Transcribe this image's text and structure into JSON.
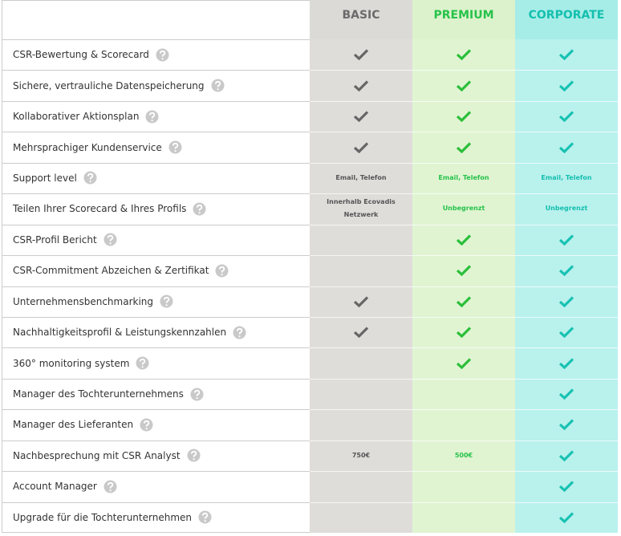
{
  "header": {
    "plans": [
      "BASIC",
      "PREMIUM",
      "CORPORATE"
    ]
  },
  "rows": [
    {
      "feature": "CSR-Bewertung & Scorecard",
      "basic": true,
      "premium": true,
      "corporate": true
    },
    {
      "feature": "Sichere, vertrauliche Datenspeicherung",
      "basic": true,
      "premium": true,
      "corporate": true
    },
    {
      "feature": "Kollaborativer Aktionsplan",
      "basic": true,
      "premium": true,
      "corporate": true
    },
    {
      "feature": "Mehrsprachiger Kundenservice",
      "basic": true,
      "premium": true,
      "corporate": true
    },
    {
      "feature": "Support level",
      "basic": "Email, Telefon",
      "premium": "Email, Telefon",
      "corporate": "Email, Telefon"
    },
    {
      "feature": "Teilen Ihrer Scorecard & Ihres Profils",
      "basic": "Innerhalb Ecovadis Netzwerk",
      "premium": "Unbegrenzt",
      "corporate": "Unbegrenzt"
    },
    {
      "feature": "CSR-Profil Bericht",
      "basic": false,
      "premium": true,
      "corporate": true
    },
    {
      "feature": "CSR-Commitment Abzeichen & Zertifikat",
      "basic": false,
      "premium": true,
      "corporate": true
    },
    {
      "feature": "Unternehmensbenchmarking",
      "basic": true,
      "premium": true,
      "corporate": true
    },
    {
      "feature": "Nachhaltigkeitsprofil & Leistungskennzahlen",
      "basic": true,
      "premium": true,
      "corporate": true
    },
    {
      "feature": "360° monitoring system",
      "basic": false,
      "premium": true,
      "corporate": true
    },
    {
      "feature": "Manager des Tochterunternehmens",
      "basic": false,
      "premium": false,
      "corporate": true
    },
    {
      "feature": "Manager des Lieferanten",
      "basic": false,
      "premium": false,
      "corporate": true
    },
    {
      "feature": "Nachbesprechung mit CSR Analyst",
      "basic": "750€",
      "premium": "500€",
      "corporate": true
    },
    {
      "feature": "Account Manager",
      "basic": false,
      "premium": false,
      "corporate": true
    },
    {
      "feature": "Upgrade für die Tochterunternehmen",
      "basic": false,
      "premium": false,
      "corporate": true
    }
  ]
}
